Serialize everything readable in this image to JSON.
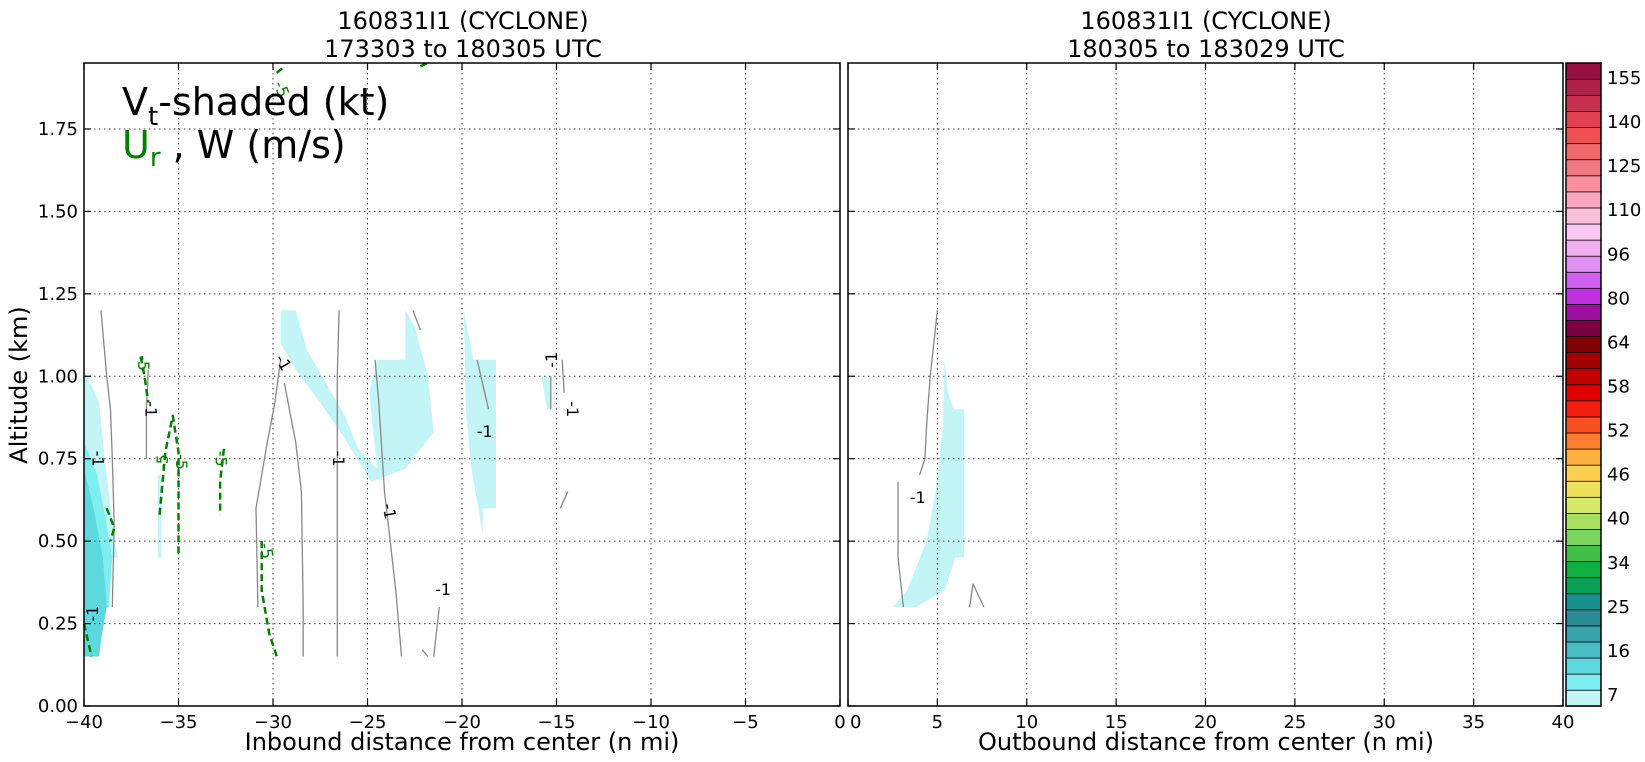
{
  "chart_data": [
    {
      "type": "contour",
      "title": [
        "160831I1 (CYCLONE)",
        "173303 to 180305 UTC"
      ],
      "xlabel": "Inbound distance from center (n mi)",
      "ylabel": "Altitude (km)",
      "xlim": [
        -40,
        0
      ],
      "ylim": [
        0,
        1.95
      ],
      "xticks": [
        "−40",
        "−35",
        "−30",
        "−25",
        "−20",
        "−15",
        "−10",
        "−5",
        "0"
      ],
      "xtick_values": [
        -40,
        -35,
        -30,
        -25,
        -20,
        -15,
        -10,
        -5,
        0
      ],
      "yticks": [
        "0.00",
        "0.25",
        "0.50",
        "0.75",
        "1.00",
        "1.25",
        "1.50",
        "1.75"
      ],
      "ytick_values": [
        0,
        0.25,
        0.5,
        0.75,
        1.0,
        1.25,
        1.5,
        1.75
      ],
      "grid": true,
      "annotation": {
        "line1_main": "V",
        "line1_sub": "t",
        "line1_rest": "-shaded (kt)",
        "line2_main": "U",
        "line2_sub": "r",
        "line2_rest": " , W (m/s)"
      },
      "shaded": [
        {
          "level": 7,
          "color": "#c4f5f6",
          "poly": [
            [
              -29.6,
              1.2
            ],
            [
              -28.8,
              1.2
            ],
            [
              -28.2,
              1.08
            ],
            [
              -27.2,
              0.98
            ],
            [
              -26.2,
              0.88
            ],
            [
              -25.5,
              0.78
            ],
            [
              -24.5,
              0.72
            ],
            [
              -24.9,
              0.95
            ],
            [
              -24.5,
              1.05
            ],
            [
              -23,
              1.05
            ],
            [
              -23,
              1.2
            ],
            [
              -22.5,
              1.15
            ],
            [
              -21.8,
              1.0
            ],
            [
              -21.5,
              0.83
            ],
            [
              -23,
              0.72
            ],
            [
              -24.8,
              0.68
            ],
            [
              -26.3,
              0.82
            ],
            [
              -27.5,
              0.92
            ],
            [
              -28.8,
              1.02
            ],
            [
              -29.6,
              1.1
            ]
          ]
        },
        {
          "level": 7,
          "color": "#c4f5f6",
          "poly": [
            [
              -19.9,
              1.2
            ],
            [
              -19.4,
              1.05
            ],
            [
              -18.2,
              1.05
            ],
            [
              -18.2,
              0.6
            ],
            [
              -18.9,
              0.6
            ],
            [
              -18.9,
              0.52
            ],
            [
              -19.5,
              0.72
            ],
            [
              -19.8,
              0.9
            ]
          ]
        },
        {
          "level": 7,
          "color": "#c4f5f6",
          "poly": [
            [
              -15.8,
              1.0
            ],
            [
              -15.5,
              0.9
            ],
            [
              -15.3,
              0.9
            ],
            [
              -15.3,
              1.0
            ]
          ]
        },
        {
          "level": 7,
          "color": "#c4f5f6",
          "poly": [
            [
              -40,
              1.02
            ],
            [
              -39.2,
              0.92
            ],
            [
              -38.9,
              0.75
            ],
            [
              -38.6,
              0.6
            ],
            [
              -38.4,
              0.5
            ],
            [
              -38.2,
              0.45
            ],
            [
              -40,
              0.45
            ]
          ]
        },
        {
          "level": 7,
          "color": "#c4f5f6",
          "poly": [
            [
              -36.1,
              0.7
            ],
            [
              -35.9,
              0.7
            ],
            [
              -35.9,
              0.45
            ],
            [
              -36.1,
              0.45
            ]
          ]
        },
        {
          "level": 12,
          "color": "#7eeef1",
          "poly": [
            [
              -40,
              0.8
            ],
            [
              -39.3,
              0.7
            ],
            [
              -38.8,
              0.55
            ],
            [
              -38.5,
              0.45
            ],
            [
              -38.7,
              0.3
            ],
            [
              -40,
              0.3
            ]
          ]
        },
        {
          "level": 16,
          "color": "#5cd9df",
          "poly": [
            [
              -40,
              0.72
            ],
            [
              -39.5,
              0.6
            ],
            [
              -39.0,
              0.45
            ],
            [
              -38.8,
              0.3
            ],
            [
              -39.1,
              0.2
            ],
            [
              -39.2,
              0.15
            ],
            [
              -40,
              0.15
            ]
          ]
        },
        {
          "level": 7,
          "color": "#c4f5f6",
          "poly": [
            [
              5.4,
              1.05
            ],
            [
              5.6,
              0.95
            ],
            [
              5.9,
              0.9
            ],
            [
              6.5,
              0.9
            ],
            [
              6.5,
              0.45
            ],
            [
              6,
              0.45
            ],
            [
              5.4,
              0.35
            ],
            [
              3.8,
              0.3
            ],
            [
              2.5,
              0.3
            ],
            [
              3.3,
              0.35
            ],
            [
              4.4,
              0.5
            ],
            [
              5.0,
              0.68
            ],
            [
              5.3,
              0.85
            ]
          ]
        }
      ],
      "contours": [
        {
          "color": "#888888",
          "dash": false,
          "width": 1.3,
          "points": [
            [
              -39.1,
              1.2
            ],
            [
              -38.8,
              1.0
            ],
            [
              -38.6,
              0.9
            ],
            [
              -38.5,
              0.75
            ],
            [
              -38.4,
              0.55
            ],
            [
              -38.5,
              0.3
            ]
          ]
        },
        {
          "color": "#888888",
          "dash": false,
          "width": 1.3,
          "points": [
            [
              -36.6,
              1.02
            ],
            [
              -36.7,
              0.9
            ],
            [
              -36.7,
              0.75
            ]
          ]
        },
        {
          "color": "#888888",
          "dash": false,
          "width": 1.3,
          "points": [
            [
              -29.6,
              1.05
            ],
            [
              -29.9,
              0.92
            ],
            [
              -30.3,
              0.8
            ],
            [
              -30.9,
              0.6
            ],
            [
              -30.8,
              0.3
            ]
          ]
        },
        {
          "color": "#888888",
          "dash": false,
          "width": 1.3,
          "points": [
            [
              -29.4,
              0.98
            ],
            [
              -28.8,
              0.8
            ],
            [
              -28.5,
              0.65
            ],
            [
              -28.4,
              0.3
            ],
            [
              -28.4,
              0.15
            ]
          ]
        },
        {
          "color": "#888888",
          "dash": false,
          "width": 1.3,
          "points": [
            [
              -26.5,
              1.2
            ],
            [
              -26.6,
              1.0
            ],
            [
              -26.6,
              0.8
            ],
            [
              -26.6,
              0.6
            ],
            [
              -26.6,
              0.15
            ]
          ]
        },
        {
          "color": "#888888",
          "dash": false,
          "width": 1.3,
          "points": [
            [
              -24.6,
              1.05
            ],
            [
              -24.4,
              0.92
            ],
            [
              -24.1,
              0.65
            ],
            [
              -23.8,
              0.5
            ],
            [
              -23.5,
              0.35
            ],
            [
              -23.2,
              0.15
            ]
          ]
        },
        {
          "color": "#888888",
          "dash": false,
          "width": 1.3,
          "points": [
            [
              -22.6,
              1.2
            ],
            [
              -22.2,
              1.14
            ]
          ]
        },
        {
          "color": "#888888",
          "dash": false,
          "width": 1.3,
          "points": [
            [
              -21.2,
              0.3
            ],
            [
              -21.5,
              0.15
            ]
          ]
        },
        {
          "color": "#888888",
          "dash": false,
          "width": 1.3,
          "points": [
            [
              -22.1,
              0.17
            ],
            [
              -21.8,
              0.15
            ]
          ]
        },
        {
          "color": "#888888",
          "dash": false,
          "width": 1.3,
          "points": [
            [
              -19.2,
              1.05
            ],
            [
              -18.6,
              0.9
            ]
          ]
        },
        {
          "color": "#888888",
          "dash": false,
          "width": 1.3,
          "points": [
            [
              -15.3,
              1.0
            ],
            [
              -15.3,
              0.9
            ]
          ]
        },
        {
          "color": "#888888",
          "dash": false,
          "width": 1.3,
          "points": [
            [
              -14.7,
              1.05
            ],
            [
              -14.6,
              0.95
            ]
          ]
        },
        {
          "color": "#888888",
          "dash": false,
          "width": 1.3,
          "points": [
            [
              -14.8,
              0.6
            ],
            [
              -14.4,
              0.65
            ]
          ]
        },
        {
          "color": "#888888",
          "dash": false,
          "width": 1.3,
          "points": [
            [
              5.0,
              1.2
            ],
            [
              4.6,
              1.0
            ],
            [
              4.4,
              0.85
            ],
            [
              4.3,
              0.75
            ],
            [
              4.0,
              0.7
            ]
          ]
        },
        {
          "color": "#888888",
          "dash": false,
          "width": 1.3,
          "points": [
            [
              2.8,
              0.68
            ],
            [
              2.8,
              0.45
            ],
            [
              3.1,
              0.3
            ]
          ]
        },
        {
          "color": "#888888",
          "dash": false,
          "width": 1.3,
          "points": [
            [
              6.8,
              0.3
            ],
            [
              7.0,
              0.37
            ],
            [
              7.6,
              0.3
            ]
          ]
        },
        {
          "color": "#008000",
          "dash": true,
          "width": 2.5,
          "points": [
            [
              -37.0,
              1.06
            ],
            [
              -36.8,
              1.0
            ],
            [
              -36.6,
              0.92
            ]
          ]
        },
        {
          "color": "#008000",
          "dash": true,
          "width": 2.5,
          "points": [
            [
              -36.0,
              0.58
            ],
            [
              -35.7,
              0.77
            ],
            [
              -35.3,
              0.88
            ],
            [
              -35.0,
              0.77
            ],
            [
              -35.0,
              0.55
            ],
            [
              -35.0,
              0.45
            ]
          ]
        },
        {
          "color": "#008000",
          "dash": true,
          "width": 2.5,
          "points": [
            [
              -32.6,
              0.78
            ],
            [
              -32.8,
              0.68
            ],
            [
              -32.8,
              0.58
            ]
          ]
        },
        {
          "color": "#008000",
          "dash": true,
          "width": 2.5,
          "points": [
            [
              -30.6,
              0.5
            ],
            [
              -30.6,
              0.35
            ],
            [
              -30.2,
              0.22
            ],
            [
              -29.8,
              0.15
            ]
          ]
        },
        {
          "color": "#008000",
          "dash": true,
          "width": 2.5,
          "points": [
            [
              -38.8,
              0.6
            ],
            [
              -38.4,
              0.54
            ],
            [
              -38.6,
              0.5
            ]
          ]
        },
        {
          "color": "#008000",
          "dash": true,
          "width": 2.5,
          "points": [
            [
              -40,
              0.25
            ],
            [
              -39.6,
              0.15
            ]
          ]
        },
        {
          "color": "#008000",
          "dash": true,
          "width": 2.5,
          "points": [
            [
              -29.8,
              1.92
            ],
            [
              -29.4,
              1.94
            ]
          ]
        },
        {
          "color": "#008000",
          "dash": true,
          "width": 2.5,
          "points": [
            [
              -22.2,
              1.94
            ],
            [
              -21.8,
              1.96
            ]
          ]
        }
      ],
      "contour_labels": [
        {
          "text": "-1",
          "x": -39.3,
          "y": 0.75,
          "color": "#000000",
          "rotate": 90
        },
        {
          "text": "-1",
          "x": -36.5,
          "y": 0.9,
          "color": "#000000",
          "rotate": 90
        },
        {
          "text": "-1",
          "x": -29.5,
          "y": 1.04,
          "color": "#000000",
          "rotate": 60
        },
        {
          "text": "-1",
          "x": -26.6,
          "y": 0.75,
          "color": "#000000",
          "rotate": 90
        },
        {
          "text": "-1",
          "x": -23.9,
          "y": 0.59,
          "color": "#000000",
          "rotate": 80
        },
        {
          "text": "-1",
          "x": -21.0,
          "y": 0.35,
          "color": "#000000",
          "rotate": 0
        },
        {
          "text": "-1",
          "x": -18.8,
          "y": 0.83,
          "color": "#000000",
          "rotate": 0
        },
        {
          "text": "-1",
          "x": -15.2,
          "y": 1.05,
          "color": "#000000",
          "rotate": -90
        },
        {
          "text": "-1",
          "x": -14.2,
          "y": 0.9,
          "color": "#000000",
          "rotate": 90
        },
        {
          "text": "-1",
          "x": -39.5,
          "y": 0.28,
          "color": "#000000",
          "rotate": -90
        },
        {
          "text": "-5",
          "x": -36.9,
          "y": 1.04,
          "color": "#008000",
          "rotate": 90
        },
        {
          "text": "-5",
          "x": -35.8,
          "y": 0.74,
          "color": "#008000",
          "rotate": -90
        },
        {
          "text": "-5",
          "x": -34.9,
          "y": 0.74,
          "color": "#008000",
          "rotate": 90
        },
        {
          "text": "-5",
          "x": -32.8,
          "y": 0.75,
          "color": "#008000",
          "rotate": 90
        },
        {
          "text": "-5",
          "x": -30.4,
          "y": 0.47,
          "color": "#008000",
          "rotate": 80
        },
        {
          "text": "-5",
          "x": -29.6,
          "y": 1.87,
          "color": "#008000",
          "rotate": 70
        },
        {
          "text": "-1",
          "x": 3.9,
          "y": 0.63,
          "color": "#000000",
          "rotate": 0
        }
      ]
    },
    {
      "type": "contour",
      "title": [
        "160831I1 (CYCLONE)",
        "180305 to 183029 UTC"
      ],
      "xlabel": "Outbound distance from center (n mi)",
      "ylabel": "",
      "xlim": [
        0,
        40
      ],
      "ylim": [
        0,
        1.95
      ],
      "xticks": [
        "0",
        "5",
        "10",
        "15",
        "20",
        "25",
        "30",
        "35",
        "40"
      ],
      "xtick_values": [
        0,
        5,
        10,
        15,
        20,
        25,
        30,
        35,
        40
      ],
      "grid": true
    },
    {
      "type": "colorbar",
      "tick_labels": [
        "155",
        "140",
        "125",
        "110",
        "96",
        "80",
        "64",
        "58",
        "52",
        "46",
        "40",
        "34",
        "25",
        "16",
        "7"
      ],
      "colors": [
        "#c4f5f6",
        "#7eeef1",
        "#5cd9df",
        "#4abcc4",
        "#3aa0aa",
        "#2a8c95",
        "#189090",
        "#0aa055",
        "#10b040",
        "#44c04a",
        "#7dd560",
        "#a8e060",
        "#d8e868",
        "#f0e060",
        "#fcd050",
        "#fcb040",
        "#fa8030",
        "#f85020",
        "#f41e0e",
        "#e00000",
        "#c00000",
        "#a00000",
        "#800000",
        "#7a0040",
        "#a010a0",
        "#c030e0",
        "#d060f0",
        "#e090f0",
        "#f0b0f0",
        "#f8c8f0",
        "#f8c0d8",
        "#f8a8c0",
        "#f890a0",
        "#f07880",
        "#f06868",
        "#f05050",
        "#e04050",
        "#c83050",
        "#b02048",
        "#981040"
      ]
    }
  ]
}
